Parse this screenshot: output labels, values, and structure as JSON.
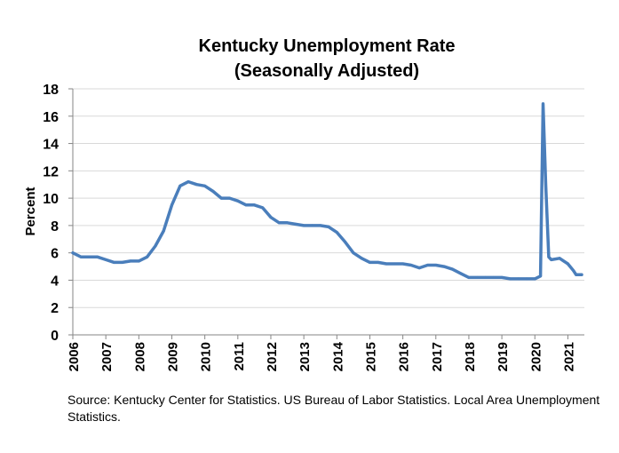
{
  "chart_data": {
    "type": "line",
    "title": [
      "Kentucky Unemployment Rate",
      "(Seasonally Adjusted)"
    ],
    "ylabel": "Percent",
    "xlabel": "",
    "ylim": [
      0,
      18
    ],
    "yticks": [
      0,
      2,
      4,
      6,
      8,
      10,
      12,
      14,
      16,
      18
    ],
    "xlim": [
      2006,
      2021.5
    ],
    "xticks": [
      "2006",
      "2007",
      "2008",
      "2009",
      "2010",
      "2011",
      "2012",
      "2013",
      "2014",
      "2015",
      "2016",
      "2017",
      "2018",
      "2019",
      "2020",
      "2021"
    ],
    "grid": "horizontal",
    "legend": "none",
    "series": [
      {
        "color": "#4a7ebb",
        "points": [
          [
            2006.0,
            6.0
          ],
          [
            2006.25,
            5.7
          ],
          [
            2006.5,
            5.7
          ],
          [
            2006.75,
            5.7
          ],
          [
            2007.0,
            5.5
          ],
          [
            2007.25,
            5.3
          ],
          [
            2007.5,
            5.3
          ],
          [
            2007.75,
            5.4
          ],
          [
            2008.0,
            5.4
          ],
          [
            2008.25,
            5.7
          ],
          [
            2008.5,
            6.5
          ],
          [
            2008.75,
            7.6
          ],
          [
            2009.0,
            9.5
          ],
          [
            2009.25,
            10.9
          ],
          [
            2009.5,
            11.2
          ],
          [
            2009.75,
            11.0
          ],
          [
            2010.0,
            10.9
          ],
          [
            2010.25,
            10.5
          ],
          [
            2010.5,
            10.0
          ],
          [
            2010.75,
            10.0
          ],
          [
            2011.0,
            9.8
          ],
          [
            2011.25,
            9.5
          ],
          [
            2011.5,
            9.5
          ],
          [
            2011.75,
            9.3
          ],
          [
            2012.0,
            8.6
          ],
          [
            2012.25,
            8.2
          ],
          [
            2012.5,
            8.2
          ],
          [
            2012.75,
            8.1
          ],
          [
            2013.0,
            8.0
          ],
          [
            2013.25,
            8.0
          ],
          [
            2013.5,
            8.0
          ],
          [
            2013.75,
            7.9
          ],
          [
            2014.0,
            7.5
          ],
          [
            2014.25,
            6.8
          ],
          [
            2014.5,
            6.0
          ],
          [
            2014.75,
            5.6
          ],
          [
            2015.0,
            5.3
          ],
          [
            2015.25,
            5.3
          ],
          [
            2015.5,
            5.2
          ],
          [
            2015.75,
            5.2
          ],
          [
            2016.0,
            5.2
          ],
          [
            2016.25,
            5.1
          ],
          [
            2016.5,
            4.9
          ],
          [
            2016.75,
            5.1
          ],
          [
            2017.0,
            5.1
          ],
          [
            2017.25,
            5.0
          ],
          [
            2017.5,
            4.8
          ],
          [
            2017.75,
            4.5
          ],
          [
            2018.0,
            4.2
          ],
          [
            2018.25,
            4.2
          ],
          [
            2018.5,
            4.2
          ],
          [
            2018.75,
            4.2
          ],
          [
            2019.0,
            4.2
          ],
          [
            2019.25,
            4.1
          ],
          [
            2019.5,
            4.1
          ],
          [
            2019.75,
            4.1
          ],
          [
            2020.0,
            4.1
          ],
          [
            2020.17,
            4.3
          ],
          [
            2020.25,
            16.9
          ],
          [
            2020.33,
            11.0
          ],
          [
            2020.42,
            5.7
          ],
          [
            2020.5,
            5.5
          ],
          [
            2020.75,
            5.6
          ],
          [
            2021.0,
            5.2
          ],
          [
            2021.17,
            4.7
          ],
          [
            2021.25,
            4.4
          ],
          [
            2021.42,
            4.4
          ]
        ]
      }
    ],
    "source": "Source: Kentucky Center for Statistics. US Bureau of Labor Statistics. Local Area Unemployment Statistics."
  }
}
